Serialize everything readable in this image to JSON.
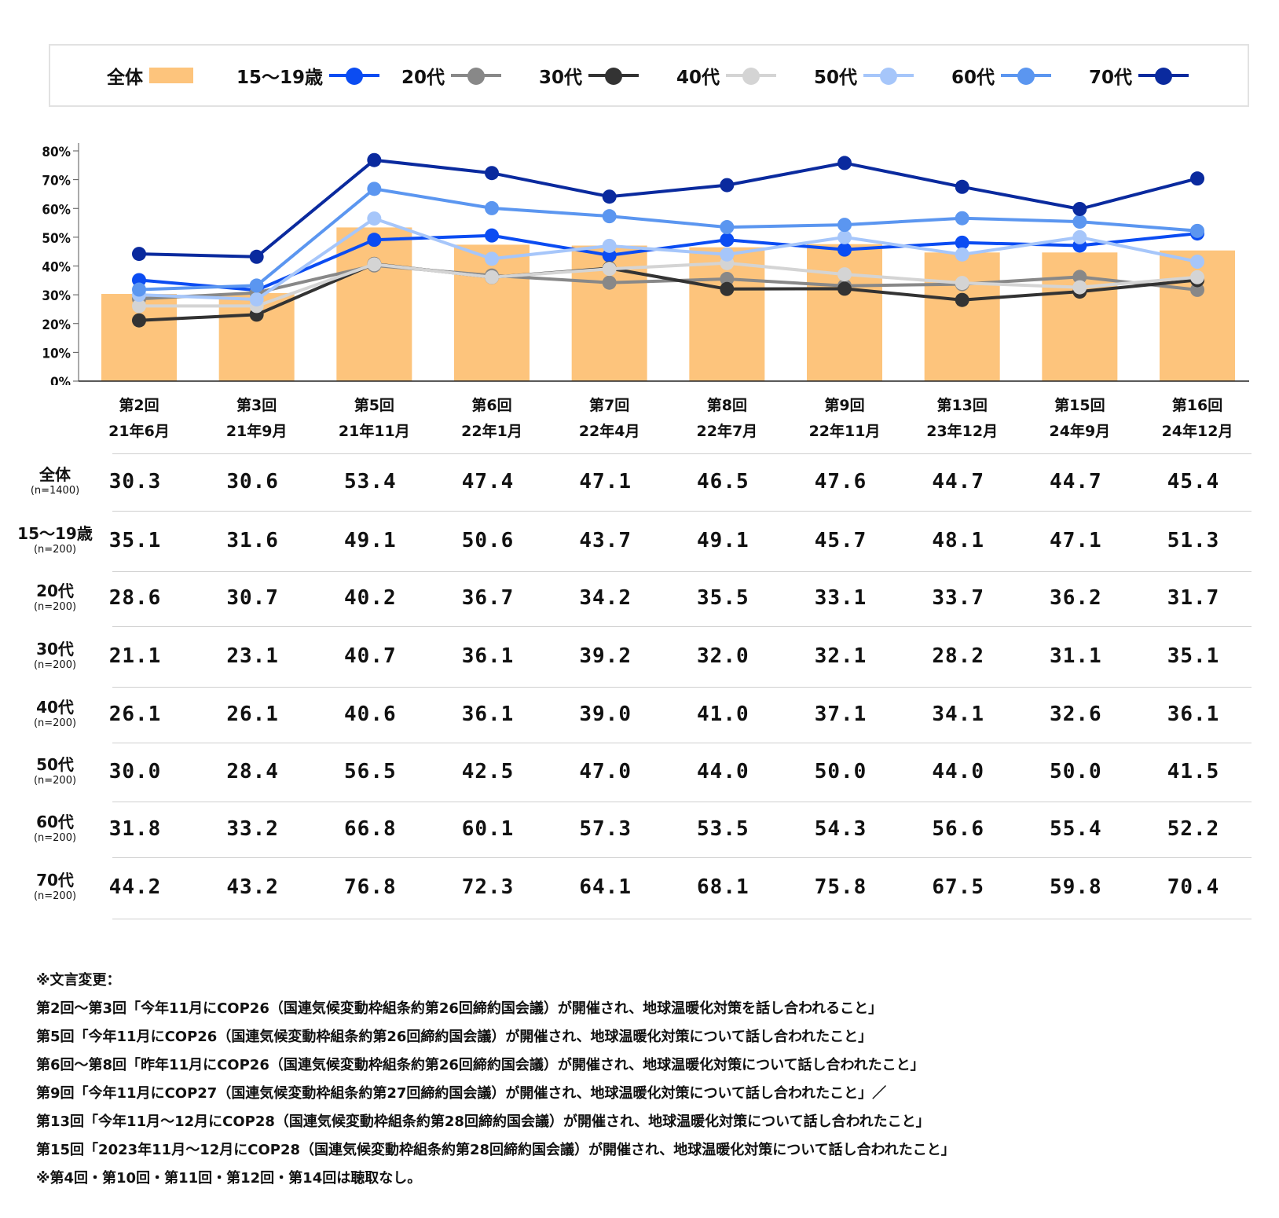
{
  "chart_data": {
    "type": "bar+line",
    "categories": [
      {
        "round": "第2回",
        "date": "21年6月"
      },
      {
        "round": "第3回",
        "date": "21年9月"
      },
      {
        "round": "第5回",
        "date": "21年11月"
      },
      {
        "round": "第6回",
        "date": "22年1月"
      },
      {
        "round": "第7回",
        "date": "22年4月"
      },
      {
        "round": "第8回",
        "date": "22年7月"
      },
      {
        "round": "第9回",
        "date": "22年11月"
      },
      {
        "round": "第13回",
        "date": "23年12月"
      },
      {
        "round": "第15回",
        "date": "24年9月"
      },
      {
        "round": "第16回",
        "date": "24年12月"
      }
    ],
    "ylim": [
      0,
      80
    ],
    "yticks": [
      "0%",
      "10%",
      "20%",
      "30%",
      "40%",
      "50%",
      "60%",
      "70%",
      "80%"
    ],
    "series": [
      {
        "name": "全体",
        "n": "(n=1400)",
        "kind": "bar",
        "color": "#FDC47C",
        "values": [
          "30.3",
          "30.6",
          "53.4",
          "47.4",
          "47.1",
          "46.5",
          "47.6",
          "44.7",
          "44.7",
          "45.4"
        ]
      },
      {
        "name": "15～19歳",
        "n": "(n=200)",
        "kind": "line",
        "color": "#0B4CF2",
        "values": [
          "35.1",
          "31.6",
          "49.1",
          "50.6",
          "43.7",
          "49.1",
          "45.7",
          "48.1",
          "47.1",
          "51.3"
        ]
      },
      {
        "name": "20代",
        "n": "(n=200)",
        "kind": "line",
        "color": "#888888",
        "values": [
          "28.6",
          "30.7",
          "40.2",
          "36.7",
          "34.2",
          "35.5",
          "33.1",
          "33.7",
          "36.2",
          "31.7"
        ]
      },
      {
        "name": "30代",
        "n": "(n=200)",
        "kind": "line",
        "color": "#333333",
        "values": [
          "21.1",
          "23.1",
          "40.7",
          "36.1",
          "39.2",
          "32.0",
          "32.1",
          "28.2",
          "31.1",
          "35.1"
        ]
      },
      {
        "name": "40代",
        "n": "(n=200)",
        "kind": "line",
        "color": "#D4D4D4",
        "values": [
          "26.1",
          "26.1",
          "40.6",
          "36.1",
          "39.0",
          "41.0",
          "37.1",
          "34.1",
          "32.6",
          "36.1"
        ]
      },
      {
        "name": "50代",
        "n": "(n=200)",
        "kind": "line",
        "color": "#A6C6FA",
        "values": [
          "30.0",
          "28.4",
          "56.5",
          "42.5",
          "47.0",
          "44.0",
          "50.0",
          "44.0",
          "50.0",
          "41.5"
        ]
      },
      {
        "name": "60代",
        "n": "(n=200)",
        "kind": "line",
        "color": "#5B96F0",
        "values": [
          "31.8",
          "33.2",
          "66.8",
          "60.1",
          "57.3",
          "53.5",
          "54.3",
          "56.6",
          "55.4",
          "52.2"
        ]
      },
      {
        "name": "70代",
        "n": "(n=200)",
        "kind": "line",
        "color": "#0A2A9E",
        "values": [
          "44.2",
          "43.2",
          "76.8",
          "72.3",
          "64.1",
          "68.1",
          "75.8",
          "67.5",
          "59.8",
          "70.4"
        ]
      }
    ]
  },
  "notes": [
    "※文言変更：",
    "第2回～第3回「今年11月にCOP26（国連気候変動枠組条約第26回締約国会議）が開催され、地球温暖化対策を話し合われること」",
    "第5回「今年11月にCOP26（国連気候変動枠組条約第26回締約国会議）が開催され、地球温暖化対策について話し合われたこと」",
    "第6回～第8回「昨年11月にCOP26（国連気候変動枠組条約第26回締約国会議）が開催され、地球温暖化対策について話し合われたこと」",
    "第9回「今年11月にCOP27（国連気候変動枠組条約第27回締約国会議）が開催され、地球温暖化対策について話し合われたこと」／",
    "第13回「今年11月～12月にCOP28（国連気候変動枠組条約第28回締約国会議）が開催され、地球温暖化対策について話し合われたこと」",
    "第15回「2023年11月～12月にCOP28（国連気候変動枠組条約第28回締約国会議）が開催され、地球温暖化対策について話し合われたこと」",
    "※第4回・第10回・第11回・第12回・第14回は聴取なし。"
  ]
}
